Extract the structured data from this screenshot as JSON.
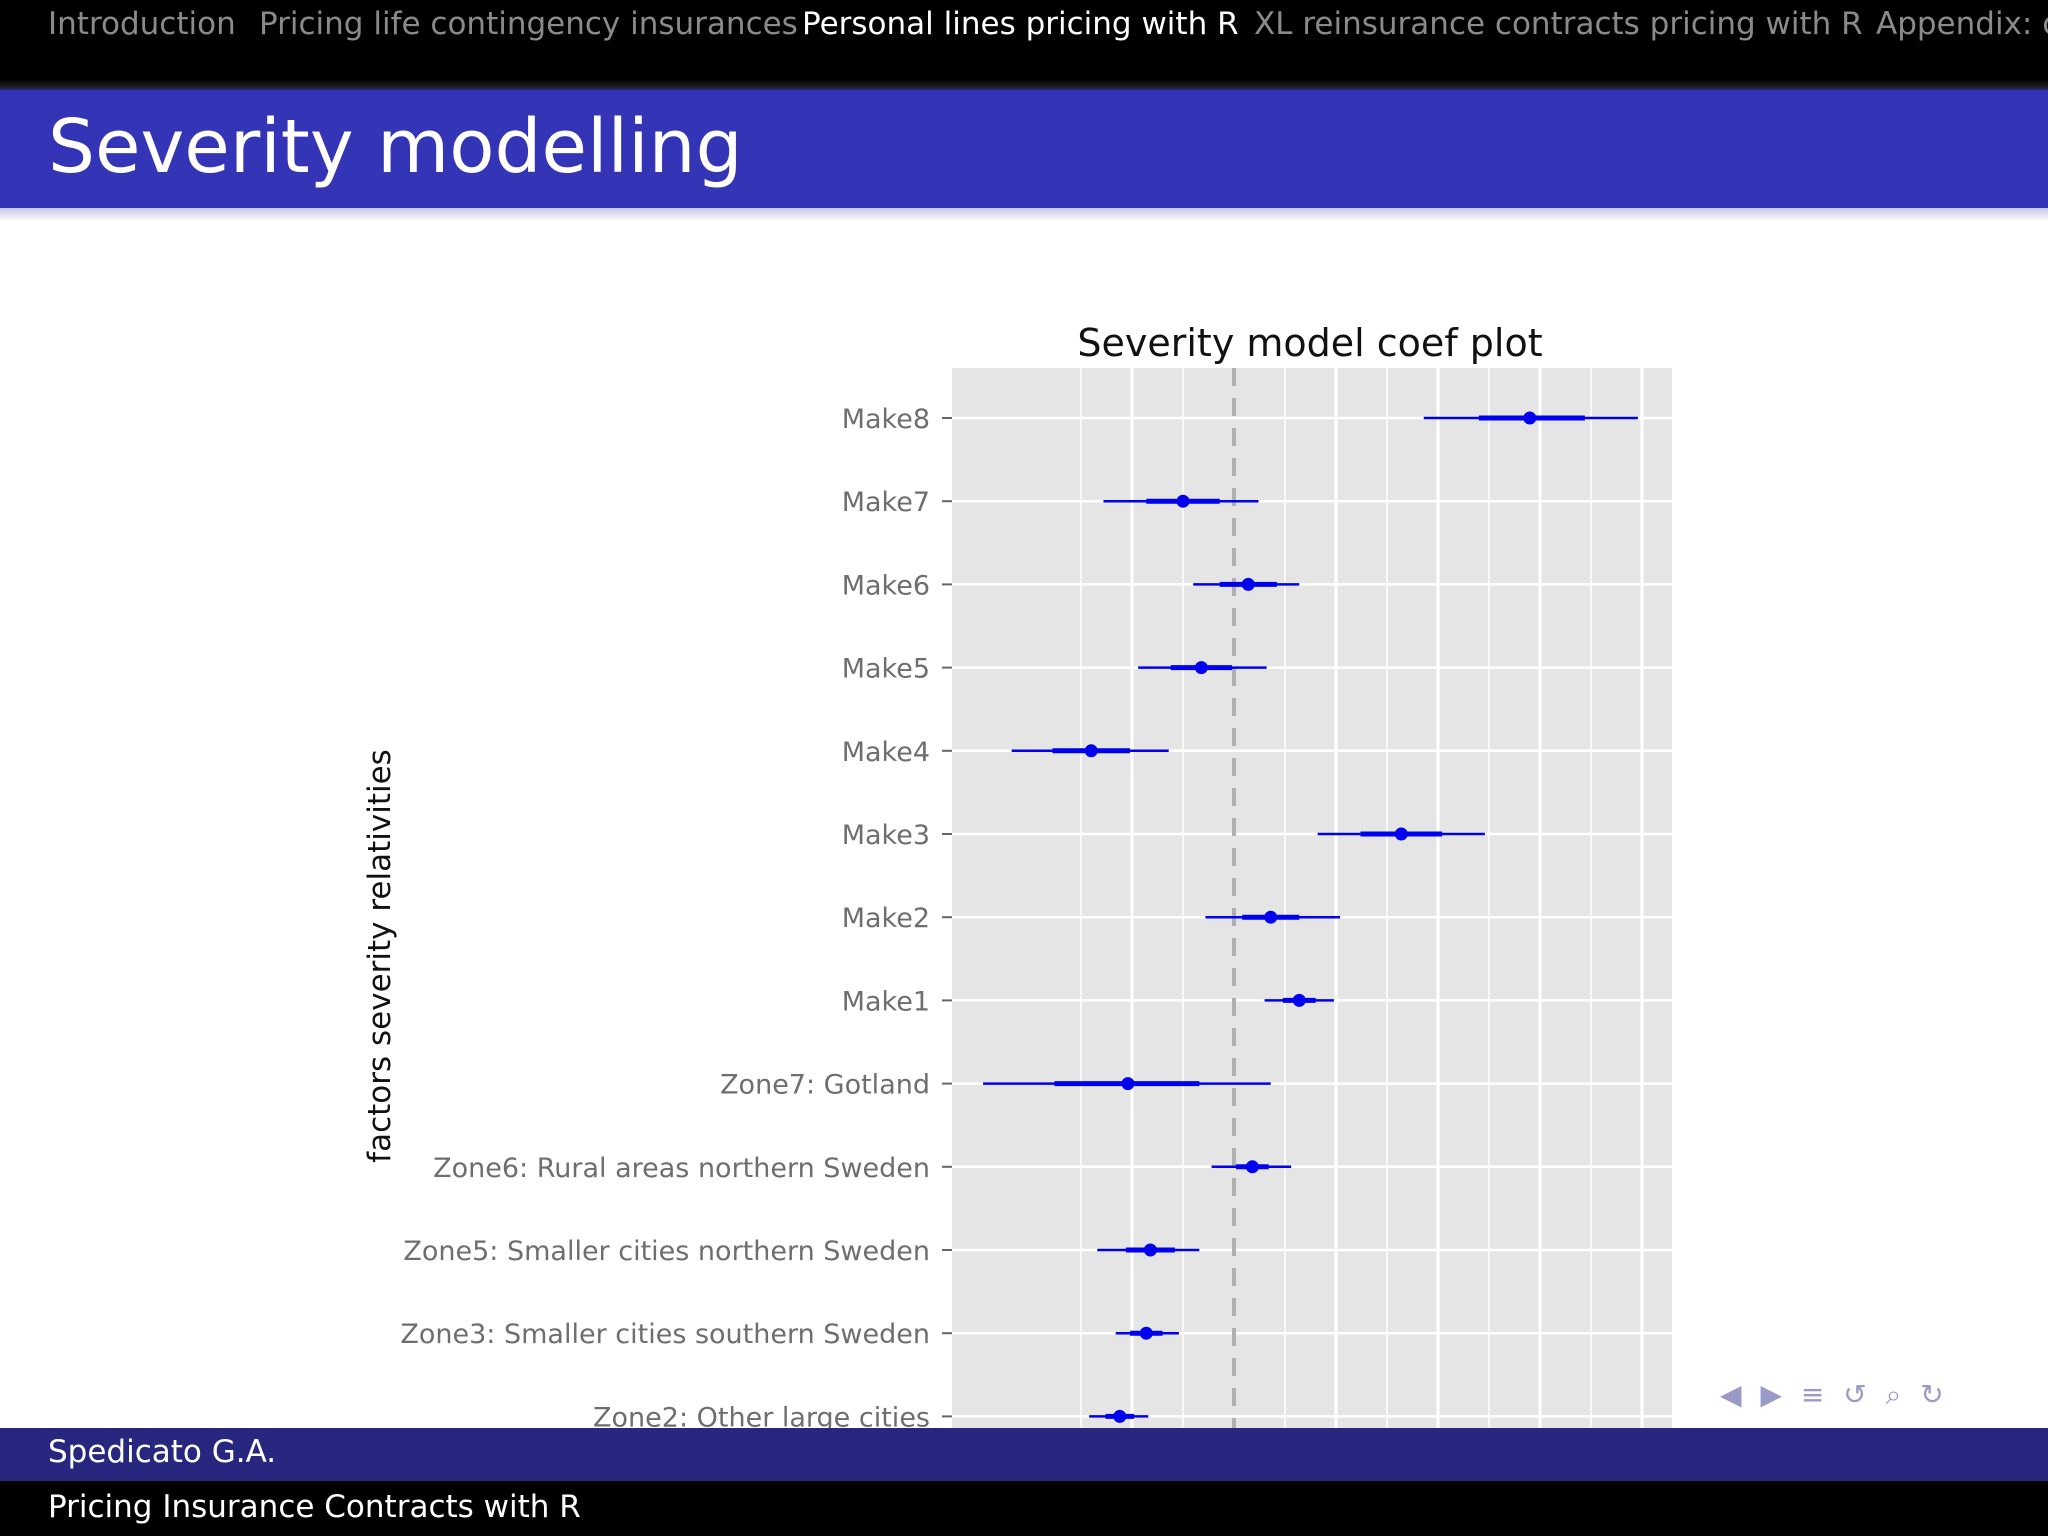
{
  "nav": {
    "items": [
      {
        "label": "Introduction",
        "active": false
      },
      {
        "label": "Pricing life contingency insurances",
        "active": false
      },
      {
        "label": "Personal lines pricing with R",
        "active": true
      },
      {
        "label": "XL reinsurance contracts pricing with R",
        "active": false
      },
      {
        "label": "Appendix: c",
        "active": false
      }
    ]
  },
  "slide": {
    "title": "Severity modelling"
  },
  "chart_data": {
    "type": "scatter",
    "title": "Severity model coef plot",
    "ylabel": "factors severity relativities",
    "xlabel": "",
    "reference_line": 0,
    "xlim": [
      -1,
      2.15
    ],
    "grid": true,
    "categories": [
      "Make8",
      "Make7",
      "Make6",
      "Make5",
      "Make4",
      "Make3",
      "Make2",
      "Make1",
      "Zone7: Gotland",
      "Zone6: Rural areas northern Sweden",
      "Zone5: Smaller cities northern Sweden",
      "Zone3: Smaller cities southern Sweden",
      "Zone2: Other large cities"
    ],
    "estimate": [
      1.45,
      -0.25,
      0.07,
      -0.16,
      -0.7,
      0.82,
      0.18,
      0.32,
      -0.52,
      0.09,
      -0.41,
      -0.43,
      -0.56
    ],
    "inner_low": [
      1.2,
      -0.43,
      -0.07,
      -0.31,
      -0.89,
      0.62,
      0.04,
      0.24,
      -0.88,
      0.01,
      -0.53,
      -0.51,
      -0.63
    ],
    "inner_high": [
      1.72,
      -0.07,
      0.21,
      -0.01,
      -0.51,
      1.02,
      0.32,
      0.4,
      -0.17,
      0.17,
      -0.29,
      -0.35,
      -0.49
    ],
    "outer_low": [
      0.93,
      -0.64,
      -0.2,
      -0.47,
      -1.09,
      0.41,
      -0.14,
      0.15,
      -1.23,
      -0.11,
      -0.67,
      -0.58,
      -0.71
    ],
    "outer_high": [
      1.98,
      0.12,
      0.32,
      0.16,
      -0.32,
      1.23,
      0.52,
      0.49,
      0.18,
      0.28,
      -0.17,
      -0.27,
      -0.42
    ],
    "color": "#0000ee"
  },
  "nav_symbols": [
    "◀",
    "▶",
    "≡",
    "↺",
    "⌕",
    "↻"
  ],
  "footer": {
    "author": "Spedicato G.A.",
    "presentation": "Pricing Insurance Contracts with R"
  }
}
